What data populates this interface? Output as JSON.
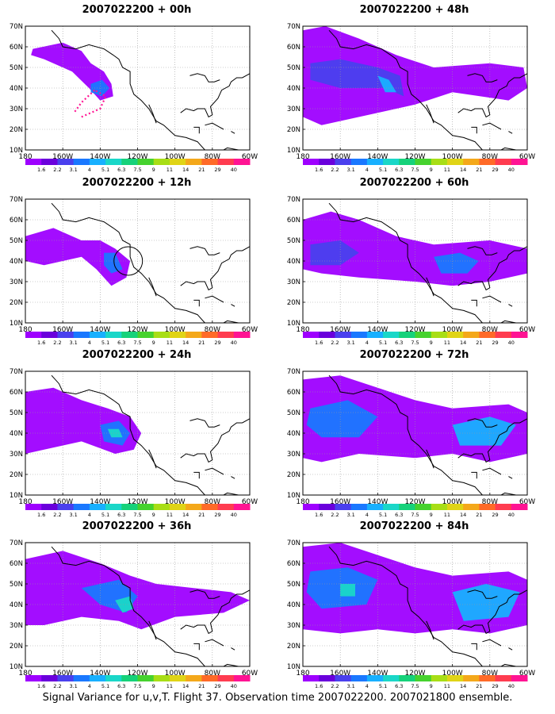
{
  "figure": {
    "caption": "Signal Variance for u,v,T. Flight 37. Observation time 2007022200. 2007021800 ensemble."
  },
  "axes": {
    "lat_labels": [
      "70N",
      "60N",
      "50N",
      "40N",
      "30N",
      "20N",
      "10N"
    ],
    "lon_labels": [
      "180",
      "160W",
      "140W",
      "120W",
      "100W",
      "80W",
      "60W"
    ]
  },
  "colorbar": {
    "labels": [
      "1.6",
      "2.2",
      "3.1",
      "4",
      "5.1",
      "6.3",
      "7.5",
      "9",
      "11",
      "14",
      "21",
      "29",
      "40"
    ],
    "colors": [
      "#9e00ff",
      "#6a00dc",
      "#4a40ee",
      "#1a78ff",
      "#18b0ff",
      "#1ad7c8",
      "#16d27a",
      "#46d22e",
      "#a8de16",
      "#e0d416",
      "#f4a81a",
      "#ff6a28",
      "#ff3c50",
      "#ff1493"
    ]
  },
  "panels": [
    {
      "title": "2007022200 + 00h"
    },
    {
      "title": "2007022200 + 48h"
    },
    {
      "title": "2007022200 + 12h"
    },
    {
      "title": "2007022200 + 60h"
    },
    {
      "title": "2007022200 + 24h"
    },
    {
      "title": "2007022200 + 72h"
    },
    {
      "title": "2007022200 + 36h"
    },
    {
      "title": "2007022200 + 84h"
    }
  ]
}
